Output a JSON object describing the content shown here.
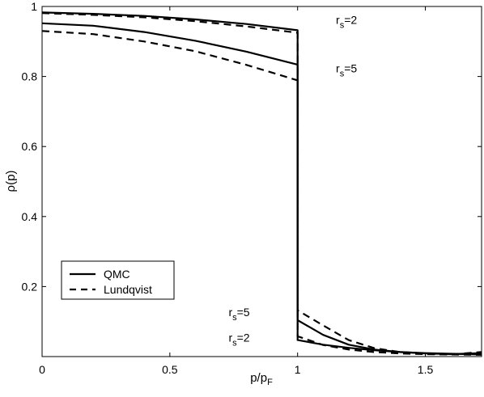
{
  "chart_data": {
    "type": "line",
    "title": "",
    "xlabel": {
      "main": "p/p",
      "sub": "F"
    },
    "ylabel": "ρ(p)",
    "xlim": [
      0,
      1.72
    ],
    "ylim": [
      0,
      1.0
    ],
    "grid": false,
    "legend_position": "bottom-left",
    "x_ticks": [
      "0",
      "0.5",
      "1",
      "1.5"
    ],
    "x_tick_values": [
      0,
      0.5,
      1,
      1.5
    ],
    "y_ticks": [
      "0.2",
      "0.4",
      "0.6",
      "0.8",
      "1"
    ],
    "y_tick_values": [
      0.2,
      0.4,
      0.6,
      0.8,
      1.0
    ],
    "legend": [
      {
        "label": "QMC",
        "style": "solid"
      },
      {
        "label": "Lundqvist",
        "style": "dashed"
      }
    ],
    "series": [
      {
        "name": "QMC",
        "style": "solid",
        "x": [
          0,
          0.2,
          0.4,
          0.6,
          0.8,
          1.0,
          1.0,
          1.1,
          1.2,
          1.3,
          1.4,
          1.5,
          1.6,
          1.72
        ],
        "y": [
          0.983,
          0.979,
          0.973,
          0.963,
          0.95,
          0.932,
          0.047,
          0.034,
          0.025,
          0.018,
          0.013,
          0.01,
          0.008,
          0.006
        ]
      },
      {
        "name": "Lundqvist",
        "style": "dashed",
        "x": [
          0,
          0.2,
          0.4,
          0.6,
          0.8,
          1.0,
          1.0,
          1.1,
          1.2,
          1.3,
          1.4,
          1.5,
          1.6,
          1.72
        ],
        "y": [
          0.981,
          0.976,
          0.969,
          0.958,
          0.943,
          0.925,
          0.058,
          0.033,
          0.02,
          0.013,
          0.009,
          0.007,
          0.006,
          0.005
        ]
      },
      {
        "name": "QMC",
        "style": "solid",
        "x": [
          0,
          0.2,
          0.4,
          0.6,
          0.8,
          1.0,
          1.0,
          1.1,
          1.2,
          1.3,
          1.4,
          1.5,
          1.6,
          1.72
        ],
        "y": [
          0.952,
          0.945,
          0.927,
          0.902,
          0.871,
          0.834,
          0.104,
          0.062,
          0.034,
          0.02,
          0.013,
          0.009,
          0.007,
          0.01
        ]
      },
      {
        "name": "Lundqvist",
        "style": "dashed",
        "x": [
          0,
          0.2,
          0.4,
          0.6,
          0.8,
          1.0,
          1.0,
          1.1,
          1.2,
          1.3,
          1.4,
          1.5,
          1.6,
          1.72
        ],
        "y": [
          0.93,
          0.921,
          0.9,
          0.872,
          0.833,
          0.789,
          0.132,
          0.089,
          0.047,
          0.024,
          0.013,
          0.008,
          0.006,
          0.013
        ]
      }
    ],
    "annotations": [
      {
        "main": "r",
        "sub": "s",
        "rest": "=2",
        "x": 1.15,
        "y": 0.95
      },
      {
        "main": "r",
        "sub": "s",
        "rest": "=5",
        "x": 1.15,
        "y": 0.812
      },
      {
        "main": "r",
        "sub": "s",
        "rest": "=5",
        "x": 0.73,
        "y": 0.115
      },
      {
        "main": "r",
        "sub": "s",
        "rest": "=2",
        "x": 0.73,
        "y": 0.043
      }
    ]
  }
}
